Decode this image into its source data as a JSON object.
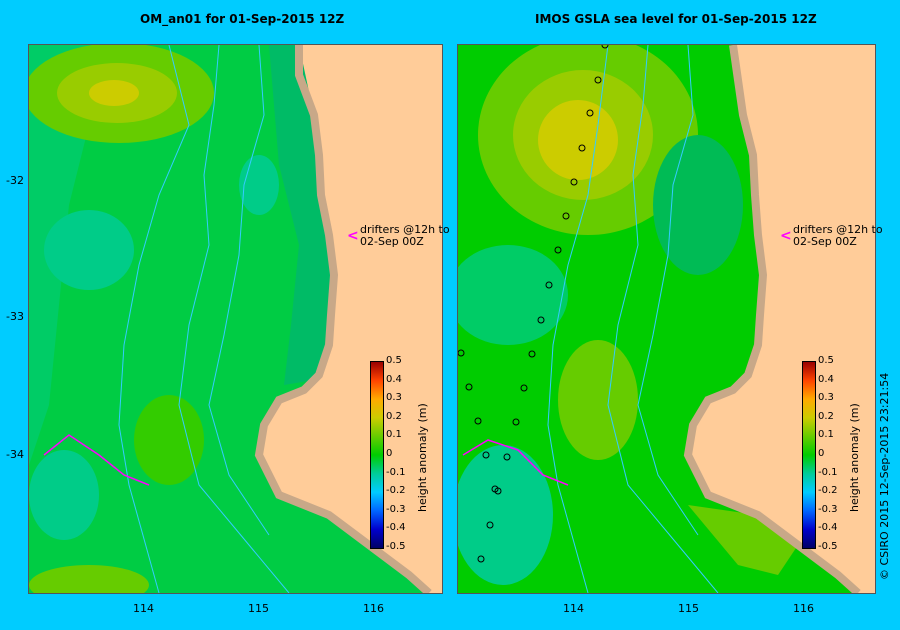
{
  "titles": {
    "left": "OM_an01  for 01-Sep-2015 12Z",
    "right": "IMOS GSLA sea level  for 01-Sep-2015 12Z"
  },
  "y_ticks": [
    "-32",
    "-33",
    "-34"
  ],
  "x_ticks": [
    "114",
    "115",
    "116"
  ],
  "drifters": {
    "line1": "drifters @12h to",
    "line2": "02-Sep 00Z"
  },
  "colorbar": {
    "ticks": [
      "0.5",
      "0.4",
      "0.3",
      "0.2",
      "0.1",
      "0",
      "-0.1",
      "-0.2",
      "-0.3",
      "-0.4",
      "-0.5"
    ],
    "label": "height anomaly (m)"
  },
  "copyright": "© CSIRO 2015   12-Sep-2015 23:21:54",
  "colors": {
    "land": "#ffcc99",
    "coast": "#c8a888",
    "ocean_mid": "#00cc44",
    "background": "#00ccff",
    "drifter": "#ff00ff"
  }
}
